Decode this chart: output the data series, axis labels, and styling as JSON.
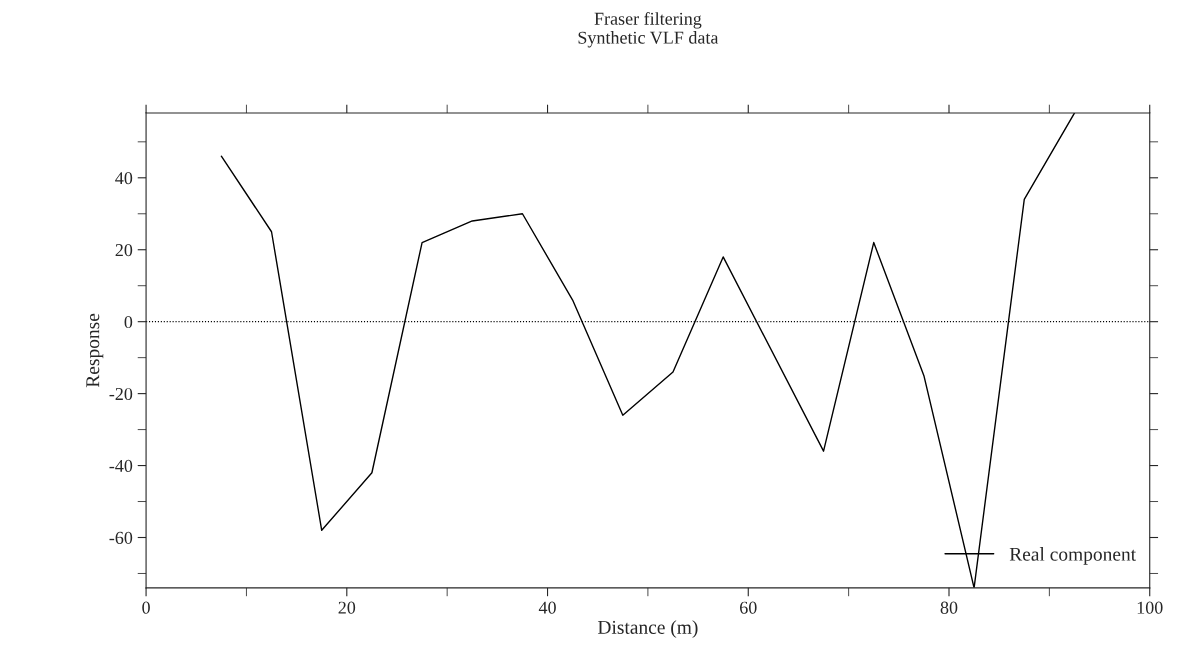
{
  "chart_data": {
    "type": "line",
    "title": "Fraser filtering\nSynthetic VLF data",
    "xlabel": "Distance (m)",
    "ylabel": "Response",
    "x": [
      7.5,
      12.5,
      17.5,
      22.5,
      27.5,
      32.5,
      37.5,
      42.5,
      47.5,
      52.5,
      57.5,
      67.5,
      72.5,
      77.5,
      82.5,
      87.5,
      92.5
    ],
    "series": [
      {
        "name": "Real component",
        "color": "#000000",
        "values": [
          46,
          25,
          -58,
          -42,
          22,
          28,
          30,
          6,
          -26,
          -14,
          18,
          -36,
          22,
          -15,
          -74,
          34,
          58
        ]
      }
    ],
    "xlim": [
      0,
      100
    ],
    "xticks": [
      0,
      20,
      40,
      60,
      80,
      100
    ],
    "ylim": [
      -74,
      58
    ],
    "yticks": [
      -60,
      -40,
      -20,
      0,
      20,
      40
    ],
    "ref_lines": [
      {
        "axis": "y",
        "value": 0,
        "line_style": "dotted",
        "color": "#000000"
      }
    ],
    "grid": false,
    "legend": "bottom right",
    "marker": "none",
    "line_style": "solid"
  }
}
